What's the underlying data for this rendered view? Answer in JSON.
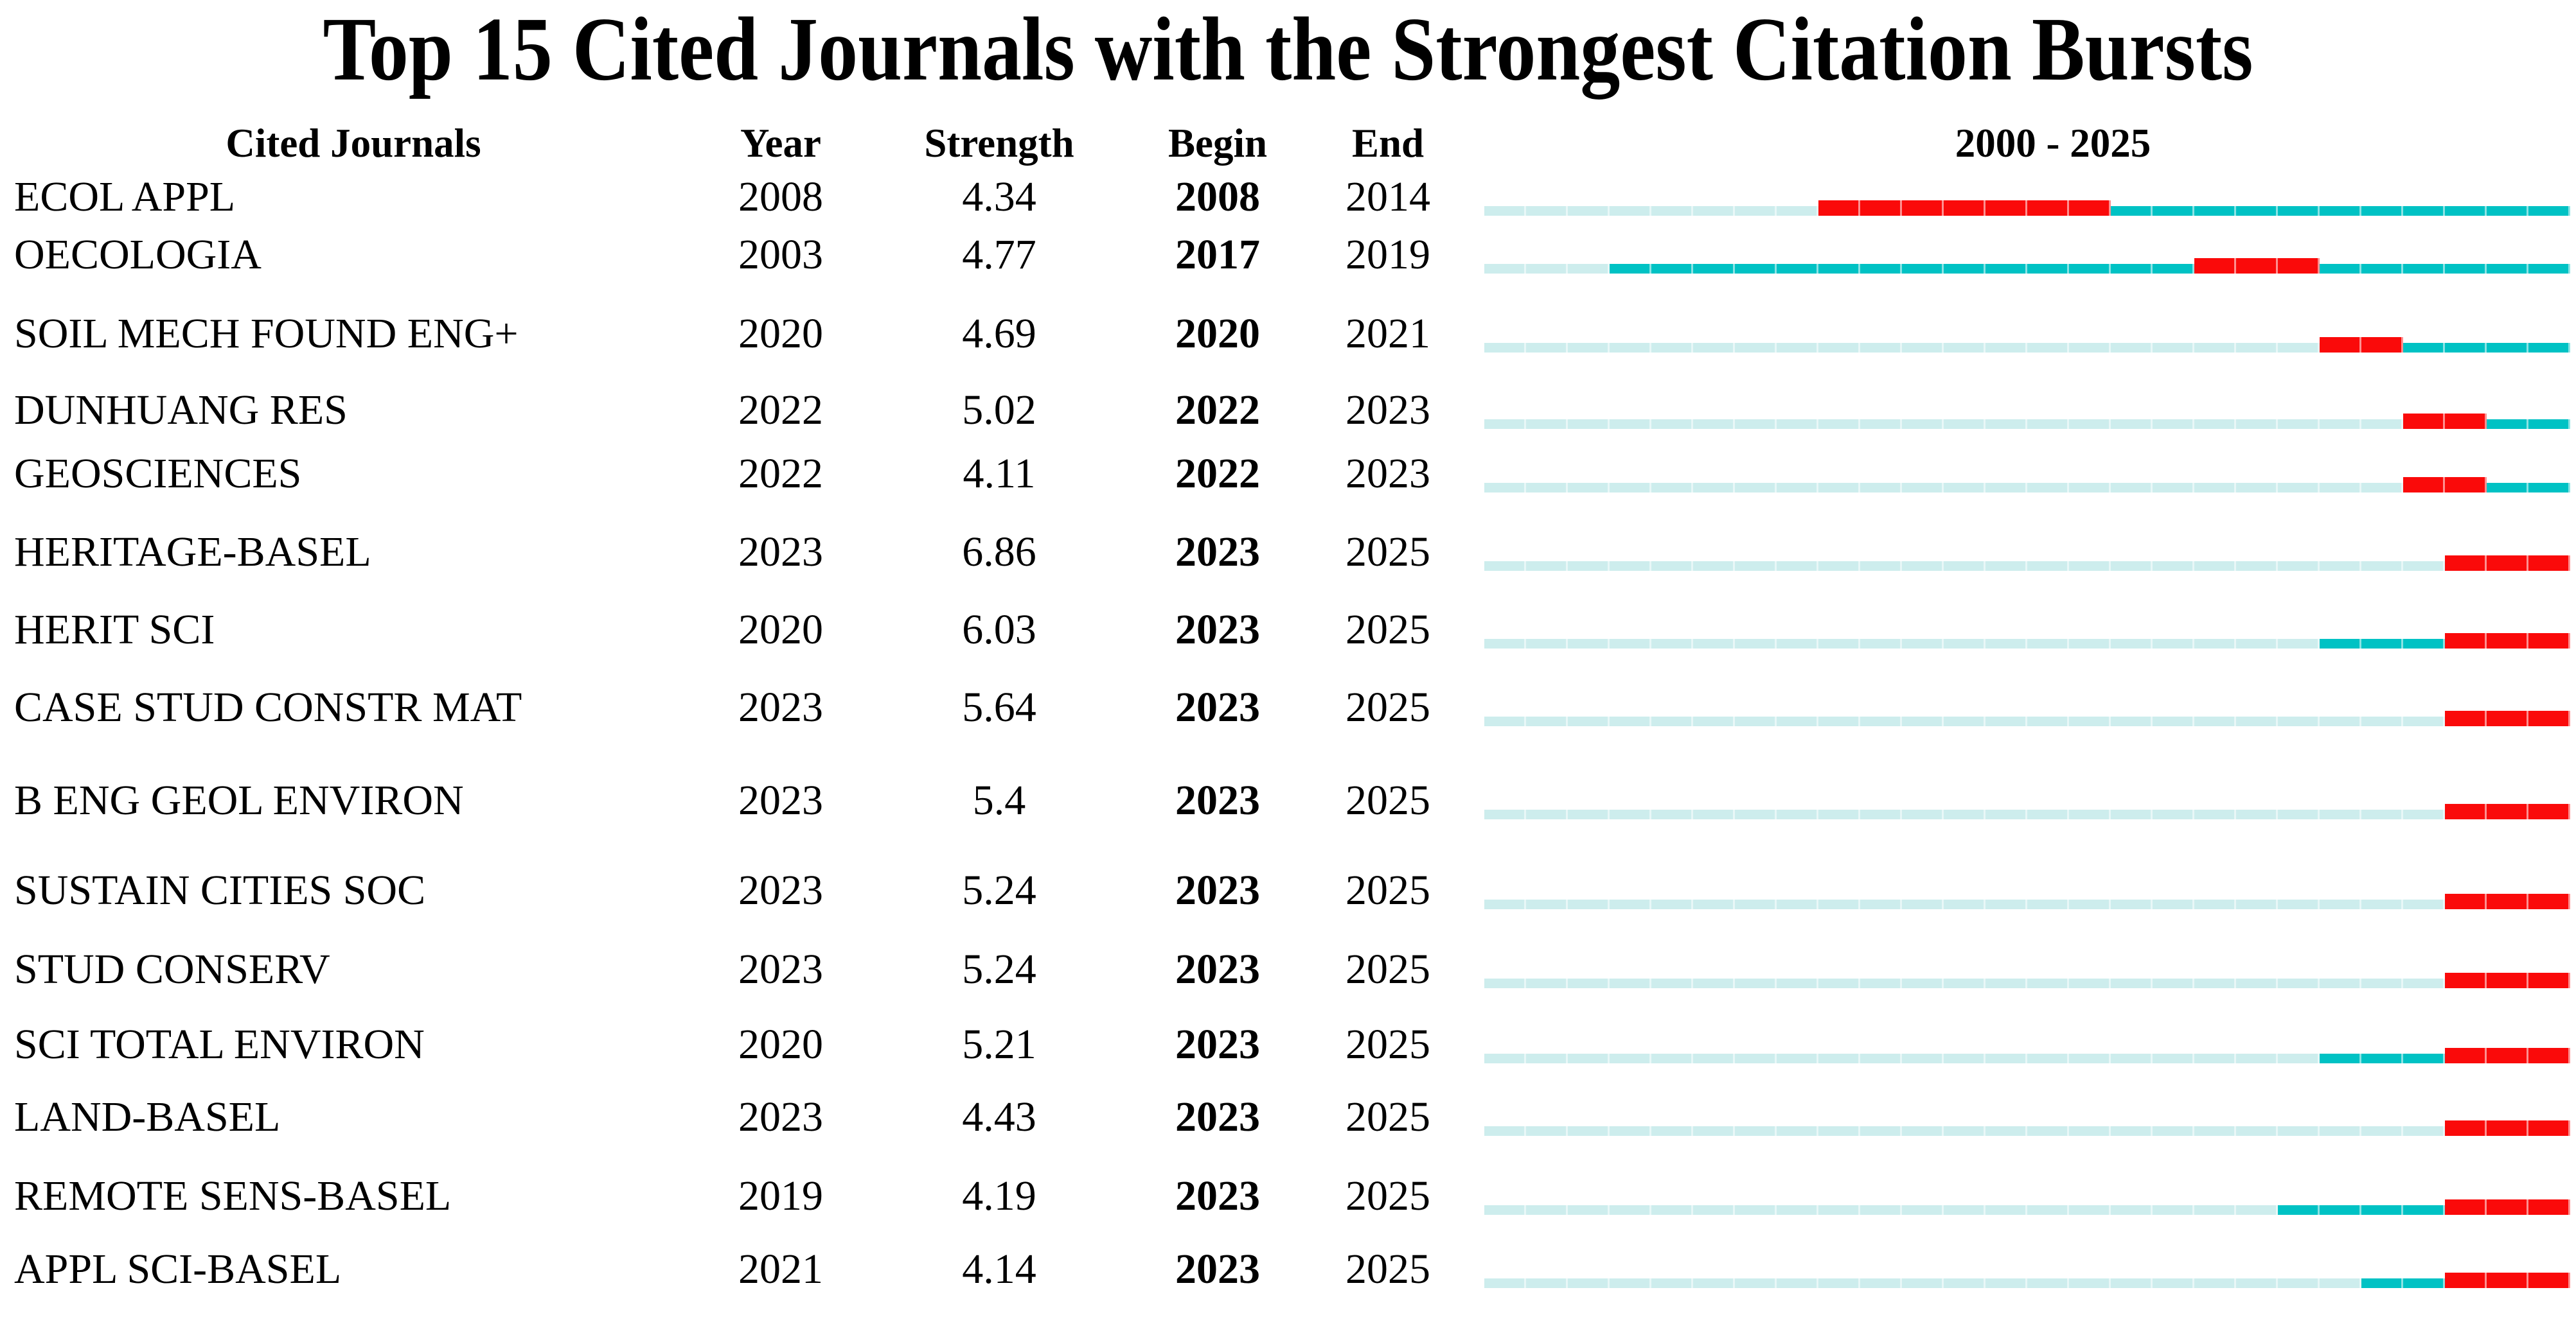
{
  "title": "Top 15 Cited Journals with the Strongest Citation Bursts",
  "columns": {
    "journal": "Cited Journals",
    "year": "Year",
    "strength": "Strength",
    "begin": "Begin",
    "end": "End",
    "range": "2000 - 2025"
  },
  "colors": {
    "pre_publication_bar": "#cdeded",
    "active_period_bar": "#00c2c4",
    "burst_period_bar": "#fa0a0a",
    "text": "#000000",
    "background": "#ffffff"
  },
  "chart_data": {
    "type": "table",
    "title": "Top 15 Cited Journals with the Strongest Citation Bursts",
    "columns": [
      "Cited Journals",
      "Year",
      "Strength",
      "Begin",
      "End",
      "2000 - 2025"
    ],
    "timeline_range": [
      2000,
      2025
    ],
    "legend": {
      "light_cyan": "years before first citation year",
      "teal": "cited period outside burst",
      "red": "citation burst interval (Begin to End)"
    },
    "rows": [
      {
        "journal": "ECOL APPL",
        "year": 2008,
        "strength": "4.34",
        "begin": 2008,
        "end": 2014
      },
      {
        "journal": "OECOLOGIA",
        "year": 2003,
        "strength": "4.77",
        "begin": 2017,
        "end": 2019
      },
      {
        "journal": "SOIL MECH FOUND ENG+",
        "year": 2020,
        "strength": "4.69",
        "begin": 2020,
        "end": 2021
      },
      {
        "journal": "DUNHUANG RES",
        "year": 2022,
        "strength": "5.02",
        "begin": 2022,
        "end": 2023
      },
      {
        "journal": "GEOSCIENCES",
        "year": 2022,
        "strength": "4.11",
        "begin": 2022,
        "end": 2023
      },
      {
        "journal": "HERITAGE-BASEL",
        "year": 2023,
        "strength": "6.86",
        "begin": 2023,
        "end": 2025
      },
      {
        "journal": "HERIT SCI",
        "year": 2020,
        "strength": "6.03",
        "begin": 2023,
        "end": 2025
      },
      {
        "journal": "CASE STUD CONSTR MAT",
        "year": 2023,
        "strength": "5.64",
        "begin": 2023,
        "end": 2025
      },
      {
        "journal": "B ENG GEOL ENVIRON",
        "year": 2023,
        "strength": "5.4",
        "begin": 2023,
        "end": 2025
      },
      {
        "journal": "SUSTAIN CITIES SOC",
        "year": 2023,
        "strength": "5.24",
        "begin": 2023,
        "end": 2025
      },
      {
        "journal": "STUD CONSERV",
        "year": 2023,
        "strength": "5.24",
        "begin": 2023,
        "end": 2025
      },
      {
        "journal": "SCI TOTAL ENVIRON",
        "year": 2020,
        "strength": "5.21",
        "begin": 2023,
        "end": 2025
      },
      {
        "journal": "LAND-BASEL",
        "year": 2023,
        "strength": "4.43",
        "begin": 2023,
        "end": 2025
      },
      {
        "journal": "REMOTE SENS-BASEL",
        "year": 2019,
        "strength": "4.19",
        "begin": 2023,
        "end": 2025
      },
      {
        "journal": "APPL SCI-BASEL",
        "year": 2021,
        "strength": "4.14",
        "begin": 2023,
        "end": 2025
      }
    ]
  }
}
